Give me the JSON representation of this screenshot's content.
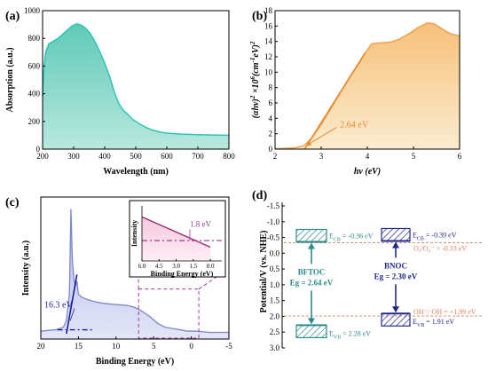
{
  "chart_data": [
    {
      "id": "a",
      "type": "area",
      "panel_label": "(a)",
      "xlabel": "Wavelength (nm)",
      "ylabel": "Absorption (a.u.)",
      "xlim": [
        200,
        800
      ],
      "ylim": [
        0,
        1000
      ],
      "xticks": [
        "200",
        "300",
        "400",
        "500",
        "600",
        "700",
        "800"
      ],
      "yticks": [
        "0",
        "200",
        "400",
        "600",
        "800",
        "1000"
      ],
      "line_color": "#2ec4b6",
      "fill_color": "#7fd6c6",
      "x": [
        200,
        205,
        210,
        220,
        235,
        250,
        265,
        280,
        295,
        310,
        325,
        340,
        355,
        370,
        385,
        400,
        415,
        430,
        445,
        460,
        475,
        490,
        510,
        530,
        550,
        575,
        600,
        650,
        700,
        750,
        800
      ],
      "y": [
        380,
        610,
        700,
        760,
        780,
        800,
        830,
        860,
        890,
        905,
        895,
        870,
        830,
        770,
        700,
        620,
        530,
        420,
        330,
        280,
        250,
        215,
        185,
        160,
        140,
        125,
        115,
        108,
        104,
        102,
        100
      ]
    },
    {
      "id": "b",
      "type": "area",
      "panel_label": "(b)",
      "xlabel": "hv (eV)",
      "ylabel_parts": [
        "(αhν)",
        "2",
        " ×10",
        "6",
        "(cm",
        "-1",
        "eV)",
        "2"
      ],
      "xlim": [
        2,
        6
      ],
      "ylim": [
        0,
        18
      ],
      "xticks": [
        "2",
        "3",
        "4",
        "5",
        "6"
      ],
      "yticks": [
        "0",
        "2",
        "4",
        "6",
        "8",
        "10",
        "12",
        "14",
        "16",
        "18"
      ],
      "line_color": "#f0a04b",
      "fill_color": "#f8d9a6",
      "x": [
        2.0,
        2.2,
        2.4,
        2.55,
        2.64,
        2.8,
        3.0,
        3.2,
        3.4,
        3.6,
        3.8,
        3.95,
        4.1,
        4.3,
        4.5,
        4.7,
        4.9,
        5.1,
        5.3,
        5.45,
        5.6,
        5.8,
        6.0
      ],
      "y": [
        0.05,
        0.08,
        0.15,
        0.3,
        0.5,
        1.5,
        3.2,
        5.2,
        7.2,
        9.2,
        11.0,
        12.5,
        13.7,
        13.8,
        13.9,
        14.3,
        15.0,
        15.8,
        16.4,
        16.3,
        15.7,
        15.0,
        14.7
      ],
      "tangent": {
        "x": [
          2.64,
          3.95
        ],
        "y": [
          0,
          12.5
        ]
      },
      "annotation": "2.64 eV",
      "annotation_point": [
        2.64,
        0.3
      ]
    },
    {
      "id": "c",
      "type": "area",
      "panel_label": "(c)",
      "xlabel": "Binding Energy (eV)",
      "ylabel": "Intensity (a.u.)",
      "xlim": [
        20,
        -5
      ],
      "ylim": [
        0,
        1
      ],
      "xticks": [
        "20",
        "15",
        "10",
        "5",
        "0",
        "-5"
      ],
      "line_color": "#7c87c8",
      "fill_color": "#c7cdee",
      "x": [
        20,
        18,
        17,
        16.6,
        16.2,
        16.0,
        15.8,
        15.6,
        15.4,
        15.2,
        15.0,
        14.6,
        14.2,
        13.8,
        13.2,
        12.5,
        11.5,
        10.5,
        9.5,
        8.5,
        7.5,
        6.5,
        5.5,
        4.5,
        3.5,
        2.5,
        1.5,
        0.5,
        -0.5,
        -1.5,
        -2.5,
        -3.5,
        -5
      ],
      "y": [
        0.02,
        0.03,
        0.05,
        0.1,
        0.3,
        0.95,
        0.55,
        0.42,
        0.36,
        0.4,
        0.3,
        0.28,
        0.27,
        0.26,
        0.25,
        0.24,
        0.23,
        0.225,
        0.22,
        0.215,
        0.2,
        0.17,
        0.13,
        0.08,
        0.05,
        0.04,
        0.03,
        0.02,
        0.02,
        0.015,
        0.01,
        0.01,
        0.01
      ],
      "onset_line": {
        "x": [
          16.6,
          15.2
        ],
        "y": [
          0.0,
          0.45
        ]
      },
      "baseline_y": 0.03,
      "annotation": "16.3 eV",
      "inset": {
        "xlabel": "Binding Energy (eV)",
        "ylabel": "Intensity",
        "xlim": [
          6,
          -1
        ],
        "ylim": [
          0,
          1
        ],
        "xticks": [
          "6.0",
          "4.5",
          "3.0",
          "1.5",
          "0.0"
        ],
        "line": {
          "x": [
            6.0,
            0.0
          ],
          "y": [
            0.8,
            0.25
          ]
        },
        "baseline_y": 0.37,
        "annotation": "1.8 eV"
      }
    },
    {
      "id": "d",
      "type": "diagram",
      "panel_label": "(d)",
      "ylabel": "Potential/V (vs. NHE)",
      "ylim": [
        -1.5,
        3.0
      ],
      "yticks": [
        "-1.5",
        "-1.0",
        "-0.5",
        "0.0",
        "0.5",
        "1.0",
        "1.5",
        "2.0",
        "2.5",
        "3.0"
      ],
      "materials": [
        {
          "name": "BFTOC",
          "eg": "Eg = 2.64 eV",
          "cb": -0.36,
          "vb": 2.28,
          "cb_label": "E",
          "cb_sub": "CB",
          "cb_value": " = -0.36 eV",
          "vb_sub": "VB",
          "vb_value": " = 2.28 eV",
          "color": "#2e8b8b"
        },
        {
          "name": "BNOC",
          "eg": "Eg = 2.30 eV",
          "cb": -0.39,
          "vb": 1.91,
          "cb_label": "E",
          "cb_sub": "CB",
          "cb_value": " = -0.39 eV",
          "vb_sub": "VB",
          "vb_value": " = 1.91 eV",
          "color": "#1f2a8a"
        }
      ],
      "redox": [
        {
          "label": "O₂/O₂⁻ = -0.33 eV",
          "value": -0.33
        },
        {
          "label": "OH⁻/·OH = +1.99 eV",
          "value": 1.99
        }
      ],
      "redox_color": "#e0825a"
    }
  ]
}
